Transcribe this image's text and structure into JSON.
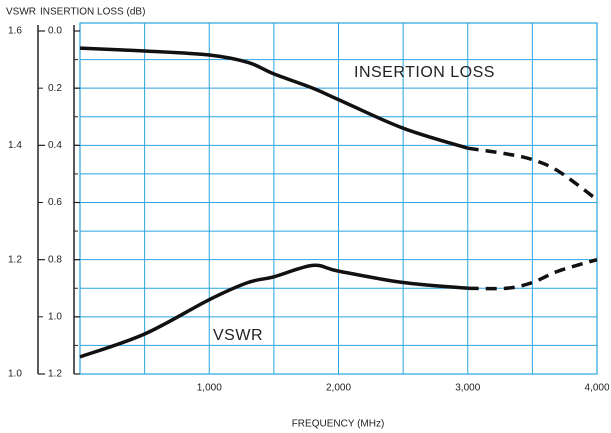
{
  "chart_data": {
    "type": "line",
    "y_axis_titles": [
      "VSWR",
      "INSERTION LOSS (dB)"
    ],
    "xlabel": "FREQUENCY (MHz)",
    "x": [
      0,
      500,
      1000,
      1300,
      1500,
      1800,
      2000,
      2500,
      3000,
      3300,
      3500,
      3700,
      4000
    ],
    "xlim": [
      0,
      4000
    ],
    "xticks": [
      {
        "value": 1000,
        "label": "1,000"
      },
      {
        "value": 2000,
        "label": "2,000"
      },
      {
        "value": 3000,
        "label": "3,000"
      },
      {
        "value": 4000,
        "label": "4,000"
      }
    ],
    "xgrid": [
      500,
      1000,
      1500,
      2000,
      2500,
      3000,
      3500
    ],
    "ylim": [
      1.2,
      0
    ],
    "yticks": [
      {
        "value": 0,
        "label": "0.0"
      },
      0.2,
      0.4,
      0.6,
      0.8,
      {
        "value": 1,
        "label": "1.0"
      },
      1.2
    ],
    "ygrid": [
      0.1,
      0.2,
      0.3,
      0.4,
      0.5,
      0.6,
      0.7,
      0.8,
      0.9,
      1.0,
      1.1
    ],
    "y2lim": [
      1.0,
      1.6
    ],
    "y2ticks": [
      {
        "value": 1,
        "label": "1.0"
      },
      1.2,
      1.4,
      1.6
    ],
    "y2minor": [
      1.1,
      1.3,
      1.5
    ],
    "grid_color": "#29a3dd",
    "series": [
      {
        "name": "INSERTION LOSS",
        "color": "#111111",
        "dash_from": 3000,
        "values": [
          0.06,
          0.07,
          0.084,
          0.11,
          0.15,
          0.2,
          0.24,
          0.34,
          0.41,
          0.43,
          0.45,
          0.49,
          0.59
        ]
      },
      {
        "name": "VSWR",
        "color": "#111111",
        "dash_from": 3000,
        "axis": "y2",
        "values": [
          1.03,
          1.07,
          1.13,
          1.16,
          1.17,
          1.19,
          1.18,
          1.16,
          1.15,
          1.15,
          1.16,
          1.18,
          1.2
        ]
      }
    ]
  }
}
